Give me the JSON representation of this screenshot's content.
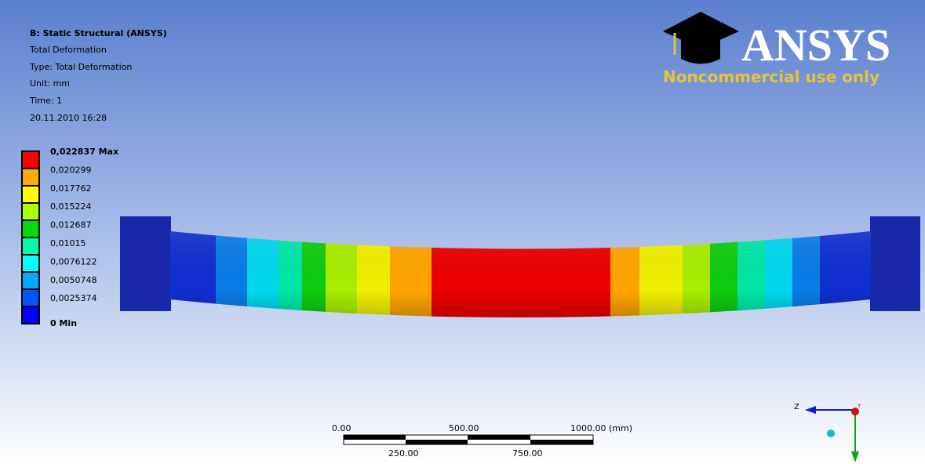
{
  "header": {
    "title": "B: Static Structural (ANSYS)",
    "lines": [
      "Total Deformation",
      "Type: Total Deformation",
      "Unit: mm",
      "Time: 1",
      "20.11.2010 16:28"
    ]
  },
  "legend": {
    "labels": [
      "0,022837 Max",
      "0,020299",
      "0,017762",
      "0,015224",
      "0,012687",
      "0,01015",
      "0,0076122",
      "0,0050748",
      "0,0025374",
      "0 Min"
    ]
  },
  "logo": {
    "brand": "ANSYS",
    "notice": "Noncommercial use only"
  },
  "scale_bar": {
    "top_labels": [
      "0.00",
      "500.00",
      "1000.00 (mm)"
    ],
    "bottom_labels": [
      "250.00",
      "750.00"
    ]
  },
  "triad": {
    "axes": [
      "Z",
      "Y"
    ]
  }
}
